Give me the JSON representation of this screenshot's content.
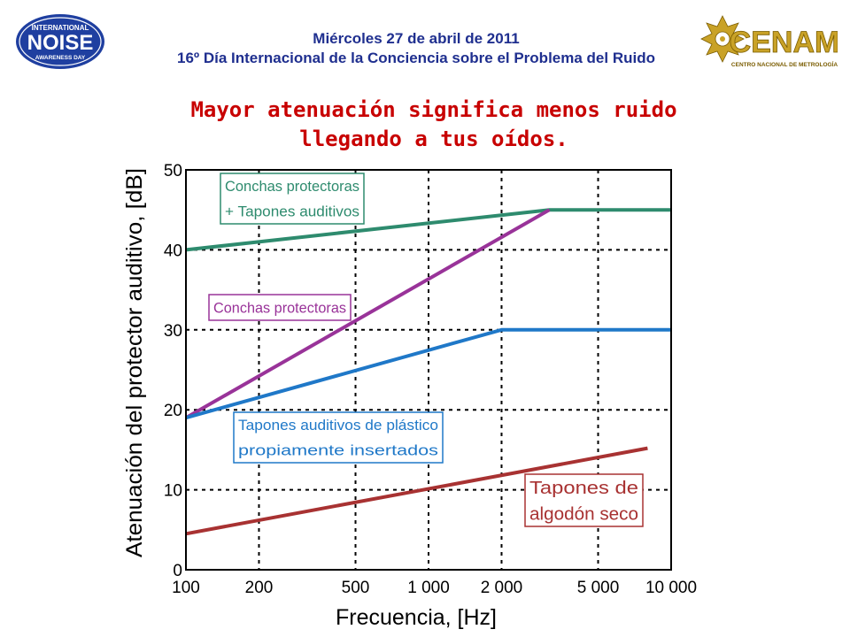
{
  "header": {
    "date": "Miércoles 27 de abril de 2011",
    "event": "16º Día Internacional de la Conciencia sobre el Problema del Ruido",
    "logo_left_text": [
      "INTERNATIONAL",
      "NOISE",
      "AWARENESS DAY"
    ],
    "logo_right_text": [
      "CENAM",
      "CENTRO NACIONAL DE METROLOGÍA"
    ]
  },
  "title": {
    "line1": "Mayor atenuación significa menos ruido",
    "line2": "llegando a tus oídos."
  },
  "chart_data": {
    "type": "line",
    "x_scale": "log",
    "xlabel": "Frecuencia, [Hz]",
    "ylabel": "Atenuación del protector auditivo, [dB]",
    "xlim": [
      100,
      10000
    ],
    "ylim": [
      0,
      50
    ],
    "x_ticks": [
      100,
      200,
      500,
      1000,
      2000,
      5000,
      10000
    ],
    "x_tick_labels": [
      "100",
      "200",
      "500",
      "1 000",
      "2 000",
      "5 000",
      "10 000"
    ],
    "y_ticks": [
      0,
      10,
      20,
      30,
      40,
      50
    ],
    "y_tick_labels": [
      "0",
      "10",
      "20",
      "30",
      "40",
      "50"
    ],
    "grid": true,
    "series": [
      {
        "name": "Conchas protectoras + Tapones auditivos",
        "label_lines": [
          "Conchas protectoras",
          "+ Tapones auditivos"
        ],
        "color": "#2e8b6e",
        "x": [
          100,
          3150,
          10000
        ],
        "y": [
          40,
          45,
          45
        ]
      },
      {
        "name": "Conchas protectoras",
        "label_lines": [
          "Conchas protectoras"
        ],
        "color": "#993399",
        "x": [
          100,
          3150
        ],
        "y": [
          19,
          45
        ]
      },
      {
        "name": "Tapones auditivos de plástico propiamente insertados",
        "label_lines": [
          "Tapones auditivos de plástico",
          "propiamente insertados"
        ],
        "color": "#1f78c8",
        "x": [
          100,
          2000,
          10000
        ],
        "y": [
          19,
          30,
          30
        ]
      },
      {
        "name": "Tapones de algodón seco",
        "label_lines": [
          "Tapones de",
          "algodón seco"
        ],
        "color": "#a83232",
        "x": [
          100,
          8000
        ],
        "y": [
          4.5,
          15.2
        ]
      }
    ]
  }
}
